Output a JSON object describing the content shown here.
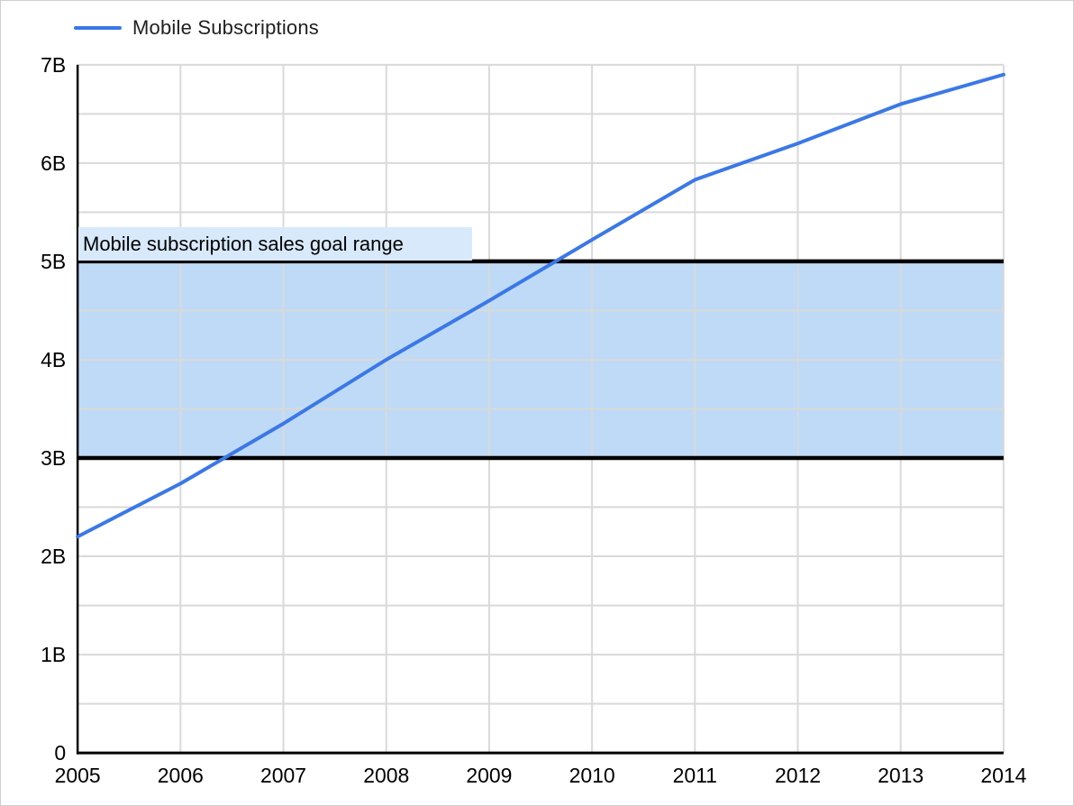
{
  "legend": {
    "label": "Mobile Subscriptions"
  },
  "annotation": {
    "label": "Mobile subscription sales goal range"
  },
  "colors": {
    "line": "#3b78e7",
    "band_fill": "#bedaf7",
    "band_border": "#000000",
    "annotation_bg": "#d8e9fc",
    "grid": "#d9d9d9",
    "axis": "#000000",
    "tick_text": "#000000"
  },
  "chart_data": {
    "type": "line",
    "title": "",
    "x": [
      2005,
      2006,
      2007,
      2008,
      2009,
      2010,
      2011,
      2012,
      2013,
      2014
    ],
    "series": [
      {
        "name": "Mobile Subscriptions",
        "values": [
          2.2,
          2.74,
          3.35,
          4.0,
          4.6,
          5.22,
          5.83,
          6.2,
          6.6,
          6.9
        ]
      }
    ],
    "xlim": [
      2005,
      2014
    ],
    "ylim": [
      0,
      7
    ],
    "x_tick_labels": [
      "2005",
      "2006",
      "2007",
      "2008",
      "2009",
      "2010",
      "2011",
      "2012",
      "2013",
      "2014"
    ],
    "y_ticks": [
      {
        "value": 0,
        "label": "0"
      },
      {
        "value": 1,
        "label": "1B"
      },
      {
        "value": 2,
        "label": "2B"
      },
      {
        "value": 3,
        "label": "3B"
      },
      {
        "value": 4,
        "label": "4B"
      },
      {
        "value": 5,
        "label": "5B"
      },
      {
        "value": 6,
        "label": "6B"
      },
      {
        "value": 7,
        "label": "7B"
      }
    ],
    "y_minor_step": 0.5,
    "grid": true,
    "legend_position": "top-left",
    "band": {
      "from": 3,
      "to": 5,
      "label": "Mobile subscription sales goal range"
    }
  }
}
